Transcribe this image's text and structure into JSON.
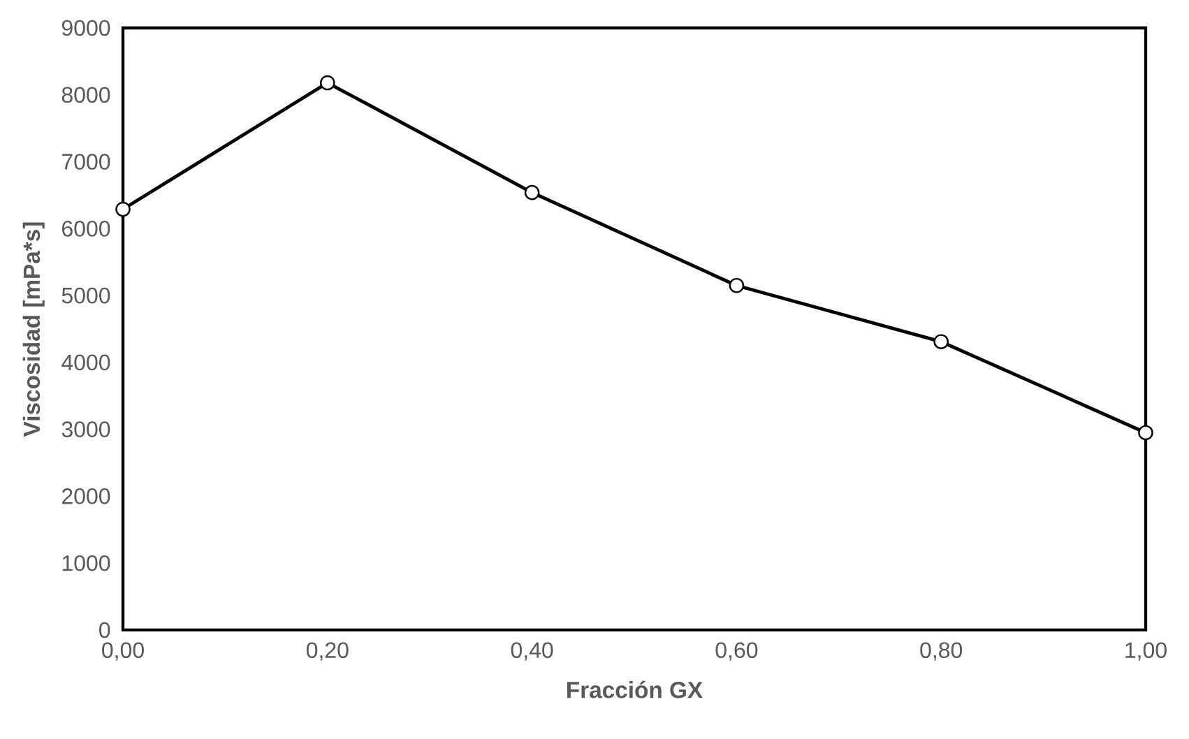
{
  "chart_data": {
    "type": "line",
    "xlabel": "Fracción GX",
    "ylabel": "Viscosidad [mPa*s]",
    "x": [
      0,
      0.2,
      0.4,
      0.6,
      0.8,
      1.0
    ],
    "series": [
      {
        "color": "#000000",
        "values": [
          6290,
          8180,
          6540,
          5150,
          4310,
          2950
        ]
      }
    ],
    "xlim": [
      0,
      1.0
    ],
    "xticks": [
      {
        "value": 0,
        "label": "0,00"
      },
      {
        "value": 0.2,
        "label": "0,20"
      },
      {
        "value": 0.4,
        "label": "0,40"
      },
      {
        "value": 0.6,
        "label": "0,60"
      },
      {
        "value": 0.8,
        "label": "0,80"
      },
      {
        "value": 1.0,
        "label": "1,00"
      }
    ],
    "ylim": [
      0,
      9000
    ],
    "yticks": [
      0,
      1000,
      2000,
      3000,
      4000,
      5000,
      6000,
      7000,
      8000,
      9000
    ],
    "marker": "circle",
    "line_style": "solid",
    "grid": false
  }
}
